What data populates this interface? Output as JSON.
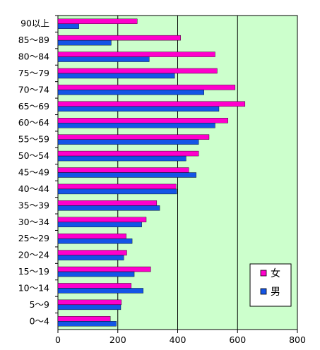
{
  "chart_data": {
    "type": "bar",
    "orientation": "horizontal",
    "categories": [
      "90以上",
      "85〜89",
      "80〜84",
      "75〜79",
      "70〜74",
      "65〜69",
      "60〜64",
      "55〜59",
      "50〜54",
      "45〜49",
      "40〜44",
      "35〜39",
      "30〜34",
      "25〜29",
      "20〜24",
      "15〜19",
      "10〜14",
      "5〜9",
      "0〜4"
    ],
    "series": [
      {
        "name": "女",
        "color": "#ff00cc",
        "values": [
          265,
          410,
          525,
          532,
          592,
          625,
          568,
          505,
          470,
          437,
          395,
          330,
          295,
          228,
          230,
          310,
          245,
          212,
          175
        ]
      },
      {
        "name": "男",
        "color": "#1455e6",
        "values": [
          70,
          178,
          305,
          390,
          488,
          538,
          525,
          470,
          428,
          462,
          397,
          340,
          280,
          248,
          220,
          255,
          285,
          210,
          195
        ]
      }
    ],
    "xlim": [
      0,
      800
    ],
    "xticks": [
      "0",
      "200",
      "400",
      "600",
      "800"
    ],
    "grid": true,
    "plot_background": "#ccffcc",
    "legend_position": "bottom-right"
  }
}
